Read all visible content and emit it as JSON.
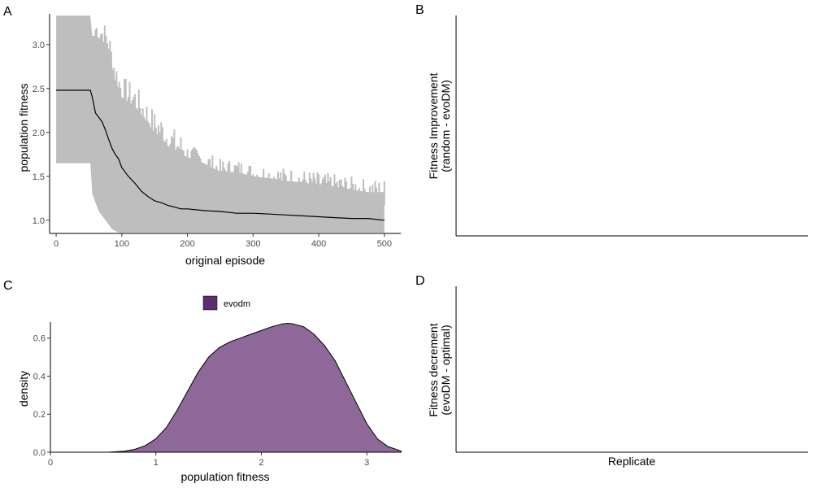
{
  "chart_data": [
    {
      "panel": "A",
      "type": "line",
      "xlabel": "original episode",
      "ylabel": "population fitness",
      "xlim": [
        -10,
        525
      ],
      "ylim": [
        0.85,
        3.35
      ],
      "xticks": [
        0,
        100,
        200,
        300,
        400,
        500
      ],
      "yticks": [
        1.0,
        1.5,
        2.0,
        2.5,
        3.0
      ],
      "ytick_labels": [
        "1.0",
        "1.5",
        "2.0",
        "2.5",
        "3.0"
      ],
      "grid": false,
      "colors": {
        "line": "#000000",
        "band": "#bebebe"
      },
      "series": [
        {
          "x": [
            0,
            52,
            55,
            60,
            65,
            70,
            75,
            80,
            85,
            90,
            95,
            100,
            110,
            120,
            130,
            140,
            150,
            160,
            170,
            180,
            190,
            200,
            225,
            250,
            275,
            300,
            325,
            350,
            375,
            400,
            425,
            450,
            475,
            500
          ],
          "values": [
            2.48,
            2.48,
            2.4,
            2.22,
            2.17,
            2.12,
            2.03,
            1.92,
            1.82,
            1.75,
            1.7,
            1.6,
            1.5,
            1.42,
            1.33,
            1.27,
            1.22,
            1.2,
            1.17,
            1.15,
            1.13,
            1.13,
            1.11,
            1.1,
            1.08,
            1.08,
            1.07,
            1.06,
            1.05,
            1.04,
            1.03,
            1.02,
            1.02,
            1.0
          ],
          "lower": [
            1.65,
            1.65,
            1.3,
            1.2,
            1.1,
            1.05,
            1.0,
            0.95,
            0.9,
            0.88,
            0.86,
            0.86,
            0.86,
            0.86,
            0.86,
            0.86,
            0.86,
            0.86,
            0.86,
            0.86,
            0.86,
            0.86,
            0.86,
            0.86,
            0.86,
            0.86,
            0.86,
            0.86,
            0.86,
            0.86,
            0.86,
            0.86,
            0.86,
            0.86
          ],
          "upper": [
            3.33,
            3.33,
            3.1,
            3.1,
            3.08,
            3.05,
            3.0,
            2.95,
            2.75,
            2.6,
            2.5,
            2.4,
            2.35,
            2.3,
            2.2,
            2.1,
            2.0,
            1.95,
            1.85,
            1.8,
            1.75,
            1.72,
            1.65,
            1.55,
            1.55,
            1.5,
            1.48,
            1.45,
            1.43,
            1.4,
            1.38,
            1.35,
            1.32,
            1.32
          ]
        }
      ]
    },
    {
      "panel": "B",
      "type": "bar",
      "xlabel": "",
      "ylabel": "Fitness Improvement",
      "ylabel_line2": "(random - evoDM)",
      "categories": [],
      "values": []
    },
    {
      "panel": "C",
      "type": "area",
      "xlabel": "population fitness",
      "ylabel": "density",
      "xlim": [
        0,
        3.33
      ],
      "ylim": [
        0,
        0.68
      ],
      "xticks": [
        0,
        1,
        2,
        3
      ],
      "yticks": [
        0.0,
        0.2,
        0.4,
        0.6
      ],
      "ytick_labels": [
        "0.0",
        "0.2",
        "0.4",
        "0.6"
      ],
      "grid": false,
      "legend": {
        "placement": "top",
        "labels": [
          "evodm"
        ]
      },
      "colors": {
        "fill": "#8e6899",
        "legend_key": "#5d2e6f",
        "stroke": "#000000"
      },
      "series": [
        {
          "name": "evodm",
          "x": [
            0.55,
            0.7,
            0.8,
            0.9,
            1.0,
            1.1,
            1.2,
            1.3,
            1.4,
            1.5,
            1.6,
            1.7,
            1.8,
            1.9,
            2.0,
            2.1,
            2.2,
            2.25,
            2.3,
            2.4,
            2.5,
            2.6,
            2.7,
            2.8,
            2.9,
            3.0,
            3.1,
            3.2,
            3.33
          ],
          "values": [
            0.0,
            0.005,
            0.015,
            0.035,
            0.07,
            0.13,
            0.22,
            0.32,
            0.42,
            0.5,
            0.55,
            0.58,
            0.6,
            0.62,
            0.64,
            0.66,
            0.675,
            0.678,
            0.675,
            0.66,
            0.62,
            0.56,
            0.48,
            0.37,
            0.26,
            0.15,
            0.07,
            0.03,
            0.005
          ]
        }
      ]
    },
    {
      "panel": "D",
      "type": "bar",
      "xlabel": "Replicate",
      "ylabel": "Fitness decrement",
      "ylabel_line2": "(evoDM - optimal)",
      "categories": [],
      "values": []
    }
  ]
}
